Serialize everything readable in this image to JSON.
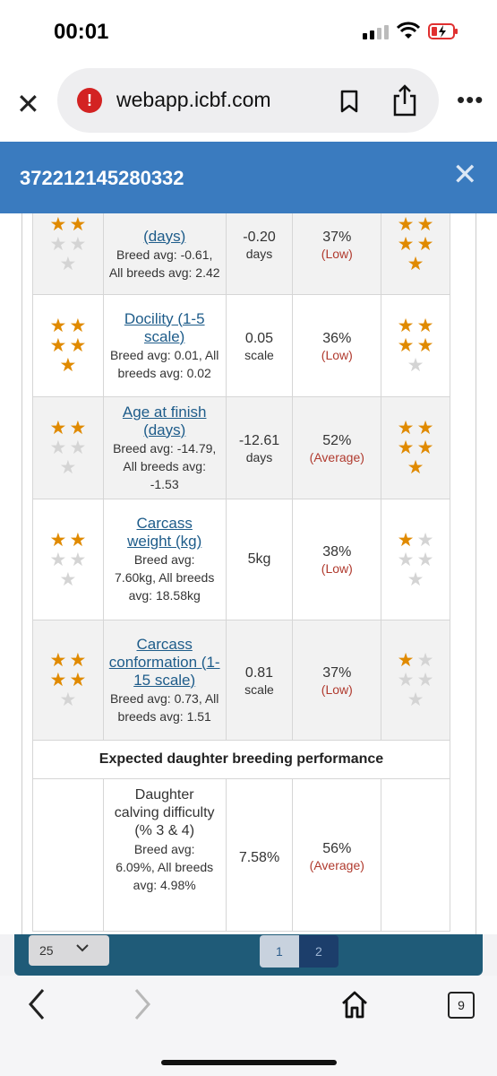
{
  "status": {
    "time": "00:01"
  },
  "browser": {
    "url": "webapp.icbf.com",
    "warn_icon": "!",
    "tab_count": "9"
  },
  "header": {
    "title": "372212145280332",
    "close": "✕"
  },
  "table": {
    "rows": [
      {
        "stars_left": [
          1,
          1,
          0,
          0,
          0
        ],
        "trait": "(days)",
        "avg": "Breed avg: -0.61, All breeds avg: 2.42",
        "value": "-0.20",
        "unit": "days",
        "reliability": "37%",
        "rel_label": "(Low)",
        "stars_right": [
          1,
          1,
          1,
          1,
          1
        ],
        "shaded": true
      },
      {
        "stars_left": [
          1,
          1,
          1,
          1,
          1
        ],
        "trait": "Docility (1-5 scale)",
        "avg": "Breed avg: 0.01, All breeds avg: 0.02",
        "value": "0.05",
        "unit": "scale",
        "reliability": "36%",
        "rel_label": "(Low)",
        "stars_right": [
          1,
          1,
          1,
          1,
          0
        ],
        "shaded": false
      },
      {
        "stars_left": [
          1,
          1,
          0,
          0,
          0
        ],
        "trait": "Age at finish (days)",
        "avg": "Breed avg: -14.79, All breeds avg: -1.53",
        "value": "-12.61",
        "unit": "days",
        "reliability": "52%",
        "rel_label": "(Average)",
        "stars_right": [
          1,
          1,
          1,
          1,
          1
        ],
        "shaded": true
      },
      {
        "stars_left": [
          1,
          1,
          0,
          0,
          0
        ],
        "trait": "Carcass weight (kg)",
        "avg": "Breed avg: 7.60kg, All breeds avg: 18.58kg",
        "value": "5kg",
        "unit": "",
        "reliability": "38%",
        "rel_label": "(Low)",
        "stars_right": [
          1,
          0,
          0,
          0,
          0
        ],
        "shaded": false
      },
      {
        "stars_left": [
          1,
          1,
          1,
          1,
          0
        ],
        "trait": "Carcass conformation (1-15 scale)",
        "avg": "Breed avg: 0.73, All breeds avg: 1.51",
        "value": "0.81",
        "unit": "scale",
        "reliability": "37%",
        "rel_label": "(Low)",
        "stars_right": [
          1,
          0,
          0,
          0,
          0
        ],
        "shaded": true
      }
    ],
    "section_title": "Expected daughter breeding performance",
    "daughter_row": {
      "trait": "Daughter calving difficulty (% 3 & 4)",
      "avg": "Breed avg: 6.09%, All breeds avg: 4.98%",
      "value": "7.58%",
      "reliability": "56%",
      "rel_label": "(Average)"
    }
  },
  "pagination": {
    "per_page": "25",
    "pages": [
      "1",
      "2"
    ],
    "current": "2"
  },
  "colors": {
    "header": "#3a7bbf",
    "star_on": "#e08a00",
    "star_off": "#d4d4d4",
    "link": "#1e5c8a",
    "rel_label": "#b03a2e"
  }
}
